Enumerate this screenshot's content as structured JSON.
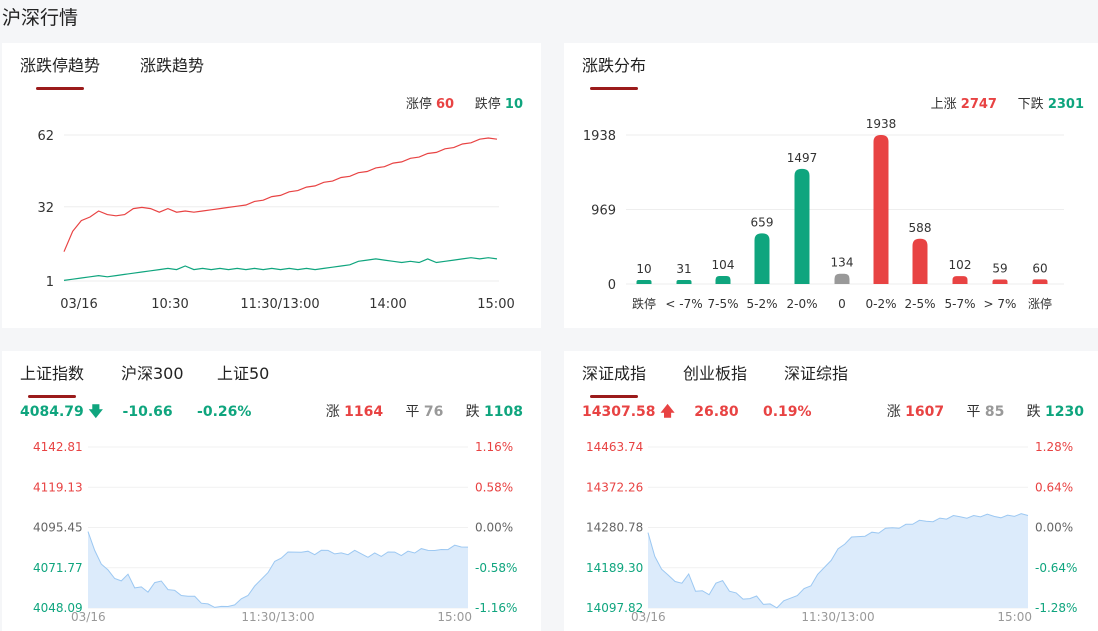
{
  "page_title": "沪深行情",
  "limit_panel": {
    "tabs": [
      "涨跌停趋势",
      "涨跌趋势"
    ],
    "limit_up_label": "涨停",
    "limit_up_value": "60",
    "limit_down_label": "跌停",
    "limit_down_value": "10",
    "y_ticks": [
      "62",
      "32",
      "1"
    ],
    "x_ticks": [
      "03/16",
      "10:30",
      "11:30/13:00",
      "14:00",
      "15:00"
    ]
  },
  "dist_panel": {
    "tab": "涨跌分布",
    "rise_label": "上涨",
    "rise_value": "2747",
    "fall_label": "下跌",
    "fall_value": "2301",
    "y_ticks": [
      "1938",
      "969",
      "0"
    ]
  },
  "sh_panel": {
    "tabs": [
      "上证指数",
      "沪深300",
      "上证50"
    ],
    "price": "4084.79",
    "change": "-10.66",
    "pct": "-0.26%",
    "up_label": "涨",
    "up_value": "1164",
    "flat_label": "平",
    "flat_value": "76",
    "down_label": "跌",
    "down_value": "1108",
    "left_ticks": [
      "4142.81",
      "4119.13",
      "4095.45",
      "4071.77",
      "4048.09"
    ],
    "right_ticks": [
      "1.16%",
      "0.58%",
      "0.00%",
      "-0.58%",
      "-1.16%"
    ],
    "x_ticks": [
      "03/16",
      "11:30/13:00",
      "15:00"
    ]
  },
  "sz_panel": {
    "tabs": [
      "深证成指",
      "创业板指",
      "深证综指"
    ],
    "price": "14307.58",
    "change": "26.80",
    "pct": "0.19%",
    "up_label": "涨",
    "up_value": "1607",
    "flat_label": "平",
    "flat_value": "85",
    "down_label": "跌",
    "down_value": "1230",
    "left_ticks": [
      "14463.74",
      "14372.26",
      "14280.78",
      "14189.30",
      "14097.82"
    ],
    "right_ticks": [
      "1.28%",
      "0.64%",
      "0.00%",
      "-0.64%",
      "-1.28%"
    ],
    "x_ticks": [
      "03/16",
      "11:30/13:00",
      "15:00"
    ]
  },
  "colors": {
    "up": "#e84343",
    "down": "#0fa57e",
    "flat": "#999999",
    "area": "#dcebfb",
    "area_line": "#9cc8f2",
    "tab_underline": "#9b1b1b"
  },
  "chart_data": [
    {
      "type": "line",
      "x_range": [
        "09:30",
        "15:00"
      ],
      "ylim": [
        1,
        62
      ],
      "series": [
        {
          "name": "涨停",
          "values": [
            13,
            22,
            26,
            28,
            30,
            29,
            28,
            29,
            31,
            32,
            31,
            30,
            31,
            30,
            30,
            30,
            30,
            31,
            31,
            32,
            32,
            33,
            34,
            35,
            36,
            37,
            38,
            39,
            40,
            41,
            42,
            43,
            44,
            45,
            46,
            47,
            48,
            49,
            50,
            51,
            52,
            53,
            54,
            55,
            56,
            57,
            58,
            59,
            60,
            61,
            60
          ]
        },
        {
          "name": "跌停",
          "values": [
            1,
            2,
            2,
            3,
            3,
            3,
            3,
            4,
            4,
            5,
            5,
            6,
            6,
            6,
            7,
            6,
            6,
            6,
            6,
            6,
            6,
            6,
            6,
            6,
            6,
            6,
            6,
            6,
            6,
            6,
            6,
            7,
            7,
            8,
            9,
            10,
            10,
            10,
            9,
            9,
            9,
            9,
            10,
            9,
            9,
            10,
            10,
            11,
            10,
            11,
            10
          ]
        }
      ]
    },
    {
      "type": "bar",
      "categories": [
        "跌停",
        "< -7%",
        "7-5%",
        "5-2%",
        "2-0%",
        "0",
        "0-2%",
        "2-5%",
        "5-7%",
        "> 7%",
        "涨停"
      ],
      "values": [
        10,
        31,
        104,
        659,
        1497,
        134,
        1938,
        588,
        102,
        59,
        60
      ],
      "ylim": [
        0,
        1938
      ]
    },
    {
      "type": "area",
      "ylim": [
        4048.09,
        4142.81
      ],
      "values": [
        4092,
        4082,
        4075,
        4070,
        4066,
        4063,
        4068,
        4061,
        4060,
        4058,
        4062,
        4064,
        4060,
        4058,
        4056,
        4054,
        4055,
        4052,
        4050,
        4049,
        4048,
        4049,
        4051,
        4053,
        4056,
        4060,
        4065,
        4070,
        4075,
        4078,
        4080,
        4081,
        4082,
        4081,
        4080,
        4081,
        4082,
        4081,
        4080,
        4080,
        4081,
        4080,
        4079,
        4080,
        4079,
        4080,
        4081,
        4080,
        4081,
        4081,
        4082,
        4082,
        4083,
        4082,
        4083,
        4084,
        4084,
        4085
      ]
    },
    {
      "type": "area",
      "ylim": [
        14097.82,
        14463.74
      ],
      "values": [
        14265,
        14215,
        14190,
        14170,
        14160,
        14150,
        14175,
        14140,
        14135,
        14130,
        14150,
        14160,
        14140,
        14130,
        14120,
        14115,
        14125,
        14110,
        14105,
        14100,
        14110,
        14120,
        14130,
        14140,
        14150,
        14170,
        14190,
        14210,
        14230,
        14245,
        14255,
        14260,
        14265,
        14268,
        14270,
        14275,
        14280,
        14283,
        14286,
        14290,
        14293,
        14295,
        14298,
        14300,
        14302,
        14304,
        14305,
        14306,
        14306,
        14307,
        14307,
        14306,
        14307,
        14307,
        14308,
        14308,
        14308
      ]
    }
  ]
}
